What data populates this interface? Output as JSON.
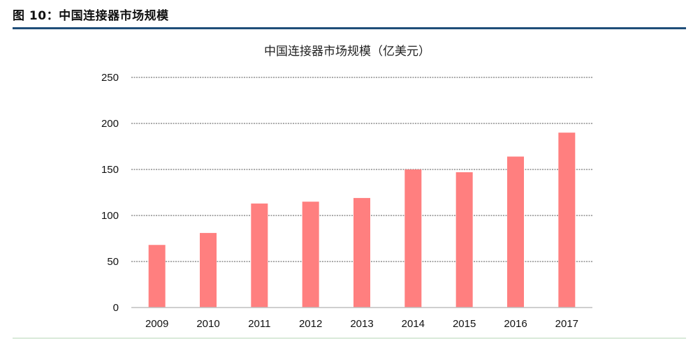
{
  "figure": {
    "label": "图 10：中国连接器市场规模",
    "rule_color": "#1f4e79",
    "bottom_rule_color": "#d9ead9"
  },
  "chart_data": {
    "type": "bar",
    "title": "中国连接器市场规模（亿美元）",
    "categories": [
      "2009",
      "2010",
      "2011",
      "2012",
      "2013",
      "2014",
      "2015",
      "2016",
      "2017"
    ],
    "values": [
      68,
      81,
      113,
      115,
      119,
      150,
      147,
      164,
      190
    ],
    "ylim": [
      0,
      250
    ],
    "yticks": [
      0,
      50,
      100,
      150,
      200,
      250
    ],
    "xlabel": "",
    "ylabel": "",
    "grid": "dashed horizontal",
    "legend": "none",
    "bar_color": "#ff7f7f"
  }
}
